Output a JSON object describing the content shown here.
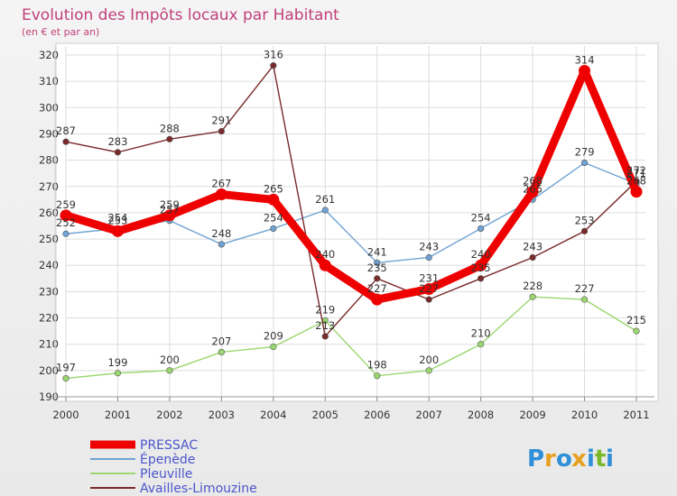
{
  "chart_data": {
    "type": "line",
    "title": "Evolution des Impôts locaux par Habitant",
    "subtitle": "(en € et par an)",
    "x": [
      "2000",
      "2001",
      "2002",
      "2003",
      "2004",
      "2005",
      "2006",
      "2007",
      "2008",
      "2009",
      "2010",
      "2011"
    ],
    "ylim": [
      190,
      320
    ],
    "yticks": [
      190,
      200,
      210,
      220,
      230,
      240,
      250,
      260,
      270,
      280,
      290,
      300,
      310,
      320
    ],
    "grid": true,
    "legend_position": "bottom-left",
    "series": [
      {
        "name": "PRESSAC",
        "color": "#ee0000",
        "values": [
          259,
          253,
          259,
          267,
          265,
          240,
          227,
          231,
          240,
          268,
          314,
          268
        ]
      },
      {
        "name": "Épenède",
        "color": "#6fa3d3",
        "values": [
          252,
          254,
          257,
          248,
          254,
          261,
          241,
          243,
          254,
          265,
          279,
          271
        ]
      },
      {
        "name": "Pleuville",
        "color": "#9ad86f",
        "values": [
          197,
          199,
          200,
          207,
          209,
          219,
          198,
          200,
          210,
          228,
          227,
          215
        ]
      },
      {
        "name": "Availles-Limouzine",
        "color": "#7a2a2a",
        "values": [
          287,
          283,
          288,
          291,
          316,
          213,
          235,
          227,
          235,
          243,
          253,
          272
        ]
      }
    ]
  },
  "logo": {
    "text": "Proxiti",
    "letters": [
      "P",
      "r",
      "o",
      "x",
      "i",
      "t",
      "i"
    ],
    "colors": [
      "#2f8fd8",
      "#e8a020",
      "#2f8fd8",
      "#e8a020",
      "#2f8fd8",
      "#7ab82a",
      "#2f8fd8"
    ]
  }
}
